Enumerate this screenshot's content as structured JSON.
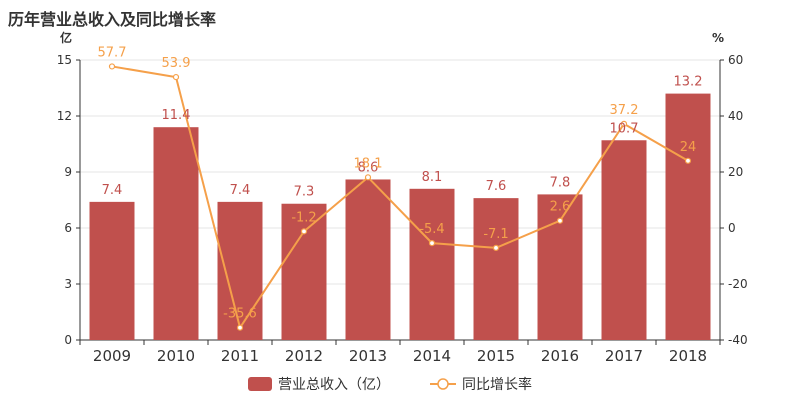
{
  "chart_data": {
    "type": "bar",
    "title": "历年营业总收入及同比增长率",
    "categories": [
      "2009",
      "2010",
      "2011",
      "2012",
      "2013",
      "2014",
      "2015",
      "2016",
      "2017",
      "2018"
    ],
    "series": [
      {
        "name": "营业总收入（亿）",
        "type": "bar",
        "axis": "left",
        "color": "#c0504d",
        "values": [
          7.4,
          11.4,
          7.4,
          7.3,
          8.6,
          8.1,
          7.6,
          7.8,
          10.7,
          13.2
        ]
      },
      {
        "name": "同比增长率",
        "type": "line",
        "axis": "right",
        "color": "#f5a04a",
        "values": [
          57.7,
          53.9,
          -35.6,
          -1.2,
          18.1,
          -5.4,
          -7.1,
          2.6,
          37.2,
          24
        ]
      }
    ],
    "y_left": {
      "unit": "亿",
      "range": [
        0,
        15
      ],
      "ticks": [
        0,
        3,
        6,
        9,
        12,
        15
      ]
    },
    "y_right": {
      "unit": "%",
      "range": [
        -40,
        60
      ],
      "ticks": [
        -40,
        -20,
        0,
        20,
        40,
        60
      ]
    },
    "grid": "horizontal",
    "legend_position": "bottom-center"
  }
}
